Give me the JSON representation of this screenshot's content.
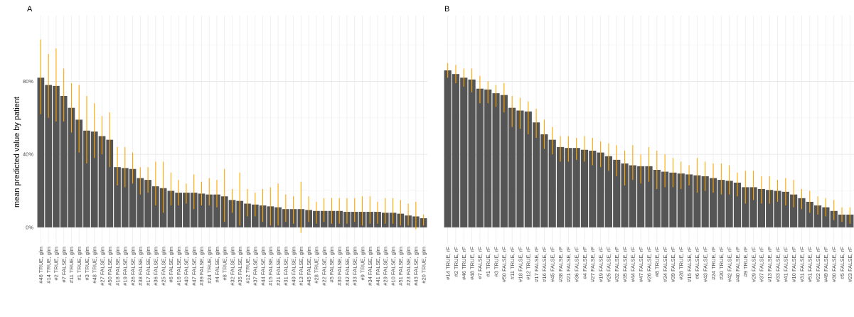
{
  "chart_data": {
    "type": "bar",
    "ylabel": "mean predicted value by patient",
    "ylim": [
      -0.09,
      1.16
    ],
    "y_ticks": [
      0,
      0.4,
      0.8
    ],
    "y_tick_labels": [
      "0%",
      "40%",
      "80%"
    ],
    "grid": true,
    "bar_color": "#555555",
    "error_bar_color": "#ffa500",
    "panels": [
      {
        "label": "A",
        "categories": [
          "#46 TRUE, glm",
          "#14 TRUE, glm",
          "#2 TRUE, glm",
          "#7 FALSE, glm",
          "#11 TRUE, glm",
          "#1 TRUE, glm",
          "#3 TRUE, glm",
          "#48 TRUE, glm",
          "#27 FALSE, glm",
          "#50 FALSE, glm",
          "#18 FALSE, glm",
          "#19 FALSE, glm",
          "#26 FALSE, glm",
          "#38 FALSE, glm",
          "#17 FALSE, glm",
          "#36 FALSE, glm",
          "#25 FALSE, glm",
          "#6 FALSE, glm",
          "#16 FALSE, glm",
          "#40 FALSE, glm",
          "#47 FALSE, glm",
          "#39 FALSE, glm",
          "#24 TRUE, glm",
          "#4 FALSE, glm",
          "#8 TRUE, glm",
          "#32 FALSE, glm",
          "#35 FALSE, glm",
          "#12 TRUE, glm",
          "#37 FALSE, glm",
          "#44 FALSE, glm",
          "#15 FALSE, glm",
          "#21 FALSE, glm",
          "#31 FALSE, glm",
          "#49 FALSE, glm",
          "#13 FALSE, glm",
          "#45 FALSE, glm",
          "#28 TRUE, glm",
          "#22 FALSE, glm",
          "#5 FALSE, glm",
          "#30 FALSE, glm",
          "#42 FALSE, glm",
          "#33 FALSE, glm",
          "#9 TRUE, glm",
          "#34 FALSE, glm",
          "#41 FALSE, glm",
          "#29 FALSE, glm",
          "#10 FALSE, glm",
          "#51 FALSE, glm",
          "#23 FALSE, glm",
          "#43 FALSE, glm",
          "#20 TRUE, glm"
        ],
        "values": [
          0.82,
          0.78,
          0.775,
          0.72,
          0.655,
          0.59,
          0.53,
          0.525,
          0.5,
          0.48,
          0.33,
          0.325,
          0.32,
          0.27,
          0.26,
          0.225,
          0.215,
          0.2,
          0.19,
          0.19,
          0.19,
          0.185,
          0.18,
          0.18,
          0.17,
          0.15,
          0.145,
          0.13,
          0.125,
          0.12,
          0.115,
          0.11,
          0.1,
          0.1,
          0.1,
          0.095,
          0.09,
          0.09,
          0.09,
          0.09,
          0.085,
          0.085,
          0.085,
          0.085,
          0.085,
          0.08,
          0.08,
          0.075,
          0.065,
          0.06,
          0.05
        ],
        "error_low": [
          0.62,
          0.6,
          0.58,
          0.58,
          0.52,
          0.41,
          0.35,
          0.38,
          0.4,
          0.33,
          0.23,
          0.22,
          0.24,
          0.18,
          0.19,
          0.12,
          0.08,
          0.12,
          0.12,
          0.13,
          0.1,
          0.12,
          0.12,
          0.11,
          0.03,
          0.08,
          0.01,
          0.06,
          0.06,
          0.03,
          0.01,
          0.01,
          0.03,
          0.02,
          -0.03,
          0.03,
          0.02,
          0.03,
          0.02,
          0.02,
          0.02,
          0.03,
          0.01,
          0.02,
          0.02,
          0.02,
          0.02,
          0.01,
          0.01,
          -0.01,
          0.01
        ],
        "error_high": [
          1.03,
          0.95,
          0.98,
          0.87,
          0.79,
          0.78,
          0.72,
          0.68,
          0.61,
          0.63,
          0.44,
          0.44,
          0.41,
          0.33,
          0.33,
          0.36,
          0.36,
          0.3,
          0.26,
          0.24,
          0.29,
          0.25,
          0.27,
          0.26,
          0.32,
          0.21,
          0.3,
          0.21,
          0.19,
          0.21,
          0.22,
          0.24,
          0.18,
          0.17,
          0.25,
          0.17,
          0.14,
          0.16,
          0.16,
          0.16,
          0.16,
          0.16,
          0.17,
          0.17,
          0.14,
          0.16,
          0.16,
          0.15,
          0.13,
          0.14,
          0.07
        ]
      },
      {
        "label": "B",
        "categories": [
          "#14 TRUE, rF",
          "#2 TRUE, rF",
          "#46 TRUE, rF",
          "#48 TRUE, rF",
          "#7 FALSE, rF",
          "#1 TRUE, rF",
          "#3 TRUE, rF",
          "#50 FALSE, rF",
          "#11 TRUE, rF",
          "#18 FALSE, rF",
          "#12 TRUE, rF",
          "#17 FALSE, rF",
          "#16 FALSE, rF",
          "#45 FALSE, rF",
          "#38 FALSE, rF",
          "#21 FALSE, rF",
          "#36 FALSE, rF",
          "#4 FALSE, rF",
          "#27 FALSE, rF",
          "#19 FALSE, rF",
          "#25 FALSE, rF",
          "#32 FALSE, rF",
          "#35 FALSE, rF",
          "#44 FALSE, rF",
          "#47 FALSE, rF",
          "#26 FALSE, rF",
          "#8 TRUE, rF",
          "#34 FALSE, rF",
          "#39 FALSE, rF",
          "#28 TRUE, rF",
          "#15 FALSE, rF",
          "#6 FALSE, rF",
          "#43 FALSE, rF",
          "#24 TRUE, rF",
          "#20 TRUE, rF",
          "#42 FALSE, rF",
          "#40 FALSE, rF",
          "#9 TRUE, rF",
          "#29 FALSE, rF",
          "#37 FALSE, rF",
          "#13 FALSE, rF",
          "#33 FALSE, rF",
          "#41 FALSE, rF",
          "#10 FALSE, rF",
          "#31 FALSE, rF",
          "#51 FALSE, rF",
          "#22 FALSE, rF",
          "#49 FALSE, rF",
          "#30 FALSE, rF",
          "#5 FALSE, rF",
          "#23 FALSE, rF"
        ],
        "values": [
          0.86,
          0.84,
          0.82,
          0.81,
          0.76,
          0.755,
          0.735,
          0.725,
          0.655,
          0.64,
          0.635,
          0.575,
          0.51,
          0.48,
          0.44,
          0.435,
          0.435,
          0.425,
          0.42,
          0.41,
          0.39,
          0.37,
          0.35,
          0.34,
          0.335,
          0.335,
          0.315,
          0.305,
          0.3,
          0.295,
          0.29,
          0.285,
          0.28,
          0.27,
          0.26,
          0.255,
          0.245,
          0.22,
          0.22,
          0.21,
          0.205,
          0.2,
          0.195,
          0.18,
          0.16,
          0.14,
          0.12,
          0.11,
          0.09,
          0.07,
          0.07
        ],
        "error_low": [
          0.82,
          0.79,
          0.77,
          0.74,
          0.68,
          0.68,
          0.66,
          0.63,
          0.55,
          0.54,
          0.51,
          0.49,
          0.43,
          0.4,
          0.36,
          0.36,
          0.37,
          0.36,
          0.34,
          0.33,
          0.31,
          0.28,
          0.23,
          0.26,
          0.24,
          0.25,
          0.21,
          0.22,
          0.22,
          0.21,
          0.23,
          0.19,
          0.2,
          0.19,
          0.18,
          0.18,
          0.17,
          0.13,
          0.15,
          0.13,
          0.13,
          0.14,
          0.12,
          0.11,
          0.1,
          0.08,
          0.07,
          0.06,
          0.04,
          0.03,
          0.02
        ],
        "error_high": [
          0.9,
          0.89,
          0.87,
          0.87,
          0.83,
          0.8,
          0.78,
          0.79,
          0.72,
          0.71,
          0.69,
          0.65,
          0.59,
          0.55,
          0.5,
          0.5,
          0.49,
          0.5,
          0.49,
          0.47,
          0.46,
          0.45,
          0.42,
          0.45,
          0.4,
          0.44,
          0.42,
          0.4,
          0.38,
          0.36,
          0.34,
          0.38,
          0.36,
          0.35,
          0.35,
          0.34,
          0.3,
          0.31,
          0.31,
          0.28,
          0.28,
          0.26,
          0.27,
          0.26,
          0.21,
          0.2,
          0.17,
          0.16,
          0.15,
          0.11,
          0.11
        ]
      }
    ]
  }
}
